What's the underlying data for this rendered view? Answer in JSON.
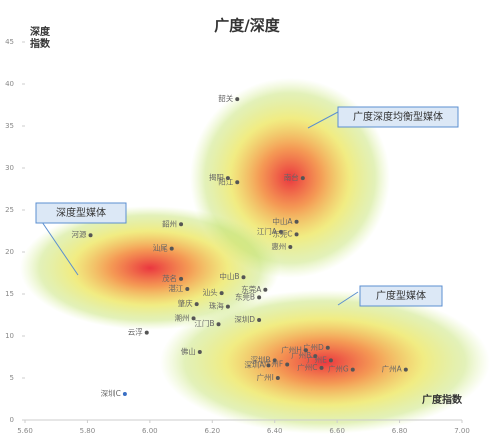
{
  "chart_data": {
    "type": "scatter",
    "title": "广度/深度",
    "y_label": "深度指数",
    "x_label": "广度指数",
    "annotations": [
      "广度深度均衡型媒体",
      "深度型媒体",
      "广度型媒体"
    ],
    "point_labels": [
      "韶关",
      "揭阳",
      "阳江",
      "南台",
      "中山A",
      "江门A",
      "东莞C",
      "惠州",
      "韶州",
      "河源",
      "汕尾",
      "茂名",
      "湛江",
      "中山B",
      "东莞A",
      "汕头",
      "东莞B",
      "肇庆",
      "珠海",
      "潮州",
      "深圳D",
      "江门B",
      "云浮",
      "佛山",
      "广州D",
      "广州H",
      "广州B",
      "广州E",
      "深圳B",
      "深圳A",
      "广州C",
      "广州G",
      "广州A",
      "广州I",
      "广州F",
      "深圳C"
    ],
    "x": [
      6.28,
      6.25,
      6.28,
      6.49,
      6.47,
      6.42,
      6.47,
      6.45,
      6.1,
      5.81,
      6.07,
      6.1,
      6.12,
      6.3,
      6.37,
      6.23,
      6.35,
      6.15,
      6.25,
      6.14,
      6.35,
      6.22,
      5.99,
      6.16,
      6.57,
      6.5,
      6.53,
      6.58,
      6.4,
      6.38,
      6.55,
      6.65,
      6.82,
      6.41,
      6.44,
      5.92
    ],
    "values": [
      38.2,
      28.8,
      28.3,
      28.8,
      23.6,
      22.4,
      22.1,
      20.6,
      23.3,
      22.0,
      20.4,
      16.8,
      15.6,
      17.0,
      15.5,
      15.1,
      14.6,
      13.8,
      13.5,
      12.1,
      11.9,
      11.4,
      10.4,
      8.1,
      8.6,
      8.3,
      7.6,
      7.1,
      7.1,
      6.5,
      6.2,
      6.0,
      6.0,
      5.0,
      6.6,
      3.1
    ],
    "colors": [
      "#555555",
      "#555555",
      "#555555",
      "#555555",
      "#555555",
      "#555555",
      "#555555",
      "#555555",
      "#555555",
      "#555555",
      "#555555",
      "#555555",
      "#555555",
      "#555555",
      "#555555",
      "#555555",
      "#555555",
      "#555555",
      "#555555",
      "#555555",
      "#555555",
      "#555555",
      "#555555",
      "#555555",
      "#555555",
      "#555555",
      "#555555",
      "#555555",
      "#555555",
      "#555555",
      "#555555",
      "#555555",
      "#555555",
      "#555555",
      "#555555",
      "#3a6fc4"
    ],
    "xlim": [
      5.6,
      7.0
    ],
    "xticks": [
      {
        "value": 5.6,
        "label": "5.60"
      },
      {
        "value": 5.8,
        "label": "5.80"
      },
      {
        "value": 6.0,
        "label": "6.00"
      },
      {
        "value": 6.2,
        "label": "6.20"
      },
      {
        "value": 6.4,
        "label": "6.40"
      },
      {
        "value": 6.6,
        "label": "6.60"
      },
      {
        "value": 6.8,
        "label": "6.80"
      },
      {
        "value": 7.0,
        "label": "7.00"
      }
    ],
    "ylim": [
      0,
      45
    ],
    "yticks": [
      0,
      5,
      10,
      15,
      20,
      25,
      30,
      35,
      40,
      45
    ]
  }
}
